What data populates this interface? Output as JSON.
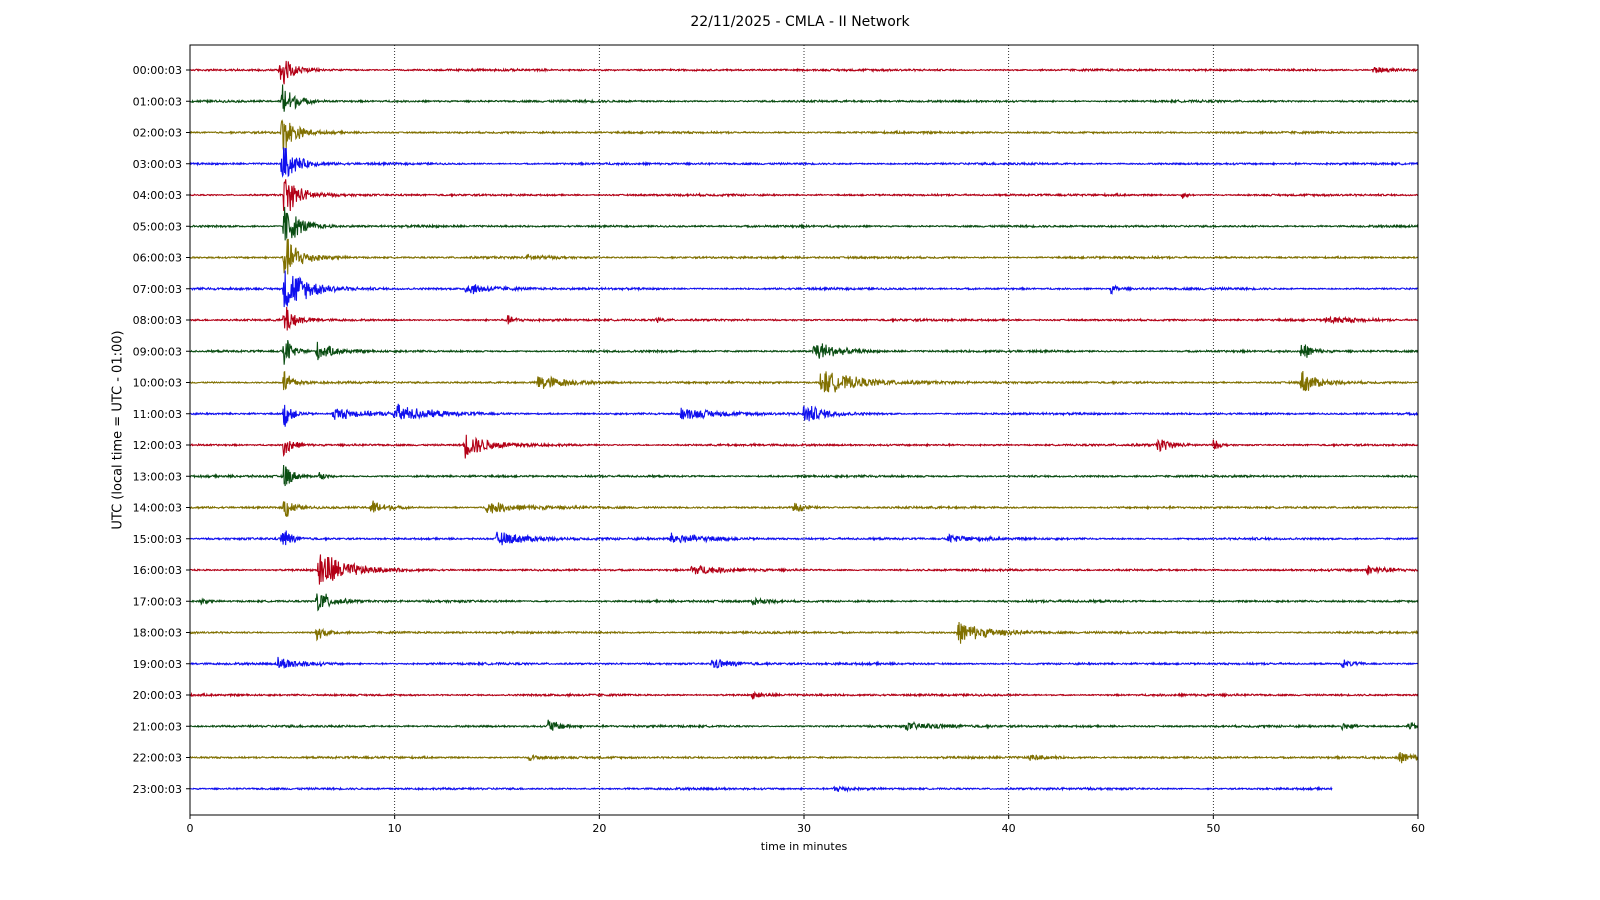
{
  "chart_data": {
    "type": "line",
    "title": "22/11/2025 - CMLA - II Network",
    "xlabel": "time in minutes",
    "ylabel": "UTC (local time = UTC - 01:00)",
    "xlim": [
      0,
      60
    ],
    "x_ticks": [
      "0",
      "10",
      "20",
      "30",
      "40",
      "50",
      "60"
    ],
    "grid": "vertical dotted lines at each 10-minute tick",
    "line_colors": [
      "#b30016",
      "#0a4d12",
      "#807000",
      "#1010ee"
    ],
    "series": [
      {
        "name": "00:00:03",
        "events": [
          {
            "t": 4.4,
            "amp": 3.2,
            "dur": 1.2
          },
          {
            "t": 57.8,
            "amp": 0.6,
            "dur": 1.5
          }
        ]
      },
      {
        "name": "01:00:03",
        "events": [
          {
            "t": 4.5,
            "amp": 3.2,
            "dur": 1.2
          }
        ]
      },
      {
        "name": "02:00:03",
        "events": [
          {
            "t": 4.5,
            "amp": 3.3,
            "dur": 1.3
          }
        ]
      },
      {
        "name": "03:00:03",
        "events": [
          {
            "t": 4.5,
            "amp": 3.4,
            "dur": 1.4
          }
        ]
      },
      {
        "name": "04:00:03",
        "events": [
          {
            "t": 4.6,
            "amp": 3.5,
            "dur": 1.5
          },
          {
            "t": 48.5,
            "amp": 0.6,
            "dur": 0.4
          }
        ]
      },
      {
        "name": "05:00:03",
        "events": [
          {
            "t": 4.6,
            "amp": 3.6,
            "dur": 1.6
          }
        ]
      },
      {
        "name": "06:00:03",
        "events": [
          {
            "t": 4.6,
            "amp": 3.6,
            "dur": 1.7
          },
          {
            "t": 16.5,
            "amp": 0.4,
            "dur": 2.0
          }
        ]
      },
      {
        "name": "07:00:03",
        "events": [
          {
            "t": 4.6,
            "amp": 3.8,
            "dur": 2.5
          },
          {
            "t": 13.5,
            "amp": 1.0,
            "dur": 2.5
          },
          {
            "t": 45.0,
            "amp": 0.7,
            "dur": 0.8
          }
        ]
      },
      {
        "name": "08:00:03",
        "events": [
          {
            "t": 4.6,
            "amp": 3.0,
            "dur": 1.0
          },
          {
            "t": 15.5,
            "amp": 0.7,
            "dur": 0.8
          },
          {
            "t": 22.8,
            "amp": 0.5,
            "dur": 0.6
          },
          {
            "t": 55.5,
            "amp": 0.6,
            "dur": 3.0
          }
        ]
      },
      {
        "name": "09:00:03",
        "events": [
          {
            "t": 4.6,
            "amp": 2.8,
            "dur": 0.8
          },
          {
            "t": 6.2,
            "amp": 1.4,
            "dur": 1.8
          },
          {
            "t": 30.5,
            "amp": 2.0,
            "dur": 2.0
          },
          {
            "t": 54.3,
            "amp": 1.6,
            "dur": 1.0
          }
        ]
      },
      {
        "name": "10:00:03",
        "events": [
          {
            "t": 4.6,
            "amp": 2.5,
            "dur": 0.8
          },
          {
            "t": 17.0,
            "amp": 1.4,
            "dur": 2.5
          },
          {
            "t": 30.8,
            "amp": 2.0,
            "dur": 4.0
          },
          {
            "t": 54.3,
            "amp": 2.0,
            "dur": 1.5
          }
        ]
      },
      {
        "name": "11:00:03",
        "events": [
          {
            "t": 4.6,
            "amp": 2.5,
            "dur": 0.8
          },
          {
            "t": 7.0,
            "amp": 1.0,
            "dur": 3.0
          },
          {
            "t": 10.0,
            "amp": 1.5,
            "dur": 3.0
          },
          {
            "t": 24.0,
            "amp": 0.9,
            "dur": 4.0
          },
          {
            "t": 30.0,
            "amp": 1.6,
            "dur": 2.0
          }
        ]
      },
      {
        "name": "12:00:03",
        "events": [
          {
            "t": 4.6,
            "amp": 2.4,
            "dur": 0.8
          },
          {
            "t": 13.4,
            "amp": 2.0,
            "dur": 2.5
          },
          {
            "t": 47.3,
            "amp": 1.2,
            "dur": 1.2
          },
          {
            "t": 50.0,
            "amp": 0.9,
            "dur": 0.6
          }
        ]
      },
      {
        "name": "13:00:03",
        "events": [
          {
            "t": 4.6,
            "amp": 2.4,
            "dur": 0.8
          },
          {
            "t": 6.3,
            "amp": 0.8,
            "dur": 0.6
          }
        ]
      },
      {
        "name": "14:00:03",
        "events": [
          {
            "t": 4.6,
            "amp": 2.3,
            "dur": 0.8
          },
          {
            "t": 8.8,
            "amp": 1.3,
            "dur": 1.5
          },
          {
            "t": 14.5,
            "amp": 1.0,
            "dur": 3.0
          },
          {
            "t": 29.5,
            "amp": 1.0,
            "dur": 1.0
          }
        ]
      },
      {
        "name": "15:00:03",
        "events": [
          {
            "t": 4.5,
            "amp": 2.2,
            "dur": 0.8
          },
          {
            "t": 15.0,
            "amp": 1.1,
            "dur": 3.5
          },
          {
            "t": 23.5,
            "amp": 0.8,
            "dur": 4.0
          },
          {
            "t": 37.0,
            "amp": 0.6,
            "dur": 3.0
          }
        ]
      },
      {
        "name": "16:00:03",
        "events": [
          {
            "t": 6.3,
            "amp": 3.6,
            "dur": 2.5
          },
          {
            "t": 24.5,
            "amp": 0.9,
            "dur": 2.5
          },
          {
            "t": 57.5,
            "amp": 0.7,
            "dur": 2.0
          }
        ]
      },
      {
        "name": "17:00:03",
        "events": [
          {
            "t": 6.2,
            "amp": 2.0,
            "dur": 1.5
          },
          {
            "t": 0.5,
            "amp": 0.7,
            "dur": 0.6
          },
          {
            "t": 27.5,
            "amp": 0.6,
            "dur": 1.5
          }
        ]
      },
      {
        "name": "18:00:03",
        "events": [
          {
            "t": 6.2,
            "amp": 1.2,
            "dur": 1.0
          },
          {
            "t": 37.5,
            "amp": 1.8,
            "dur": 3.0
          }
        ]
      },
      {
        "name": "19:00:03",
        "events": [
          {
            "t": 4.3,
            "amp": 1.0,
            "dur": 2.5
          },
          {
            "t": 25.5,
            "amp": 0.8,
            "dur": 2.5
          },
          {
            "t": 56.3,
            "amp": 0.7,
            "dur": 1.2
          }
        ]
      },
      {
        "name": "20:00:03",
        "events": [
          {
            "t": 27.5,
            "amp": 0.6,
            "dur": 1.2
          }
        ]
      },
      {
        "name": "21:00:03",
        "events": [
          {
            "t": 17.5,
            "amp": 1.2,
            "dur": 1.2
          },
          {
            "t": 35.0,
            "amp": 0.5,
            "dur": 4.0
          },
          {
            "t": 56.3,
            "amp": 0.6,
            "dur": 1.0
          },
          {
            "t": 59.5,
            "amp": 0.6,
            "dur": 1.5
          }
        ]
      },
      {
        "name": "22:00:03",
        "events": [
          {
            "t": 16.5,
            "amp": 0.5,
            "dur": 1.5
          },
          {
            "t": 41.0,
            "amp": 0.5,
            "dur": 1.5
          },
          {
            "t": 59.0,
            "amp": 0.9,
            "dur": 2.0
          }
        ]
      },
      {
        "name": "23:00:03",
        "events": [
          {
            "t": 31.5,
            "amp": 0.6,
            "dur": 1.5
          }
        ],
        "end_minute": 55.8
      }
    ]
  }
}
